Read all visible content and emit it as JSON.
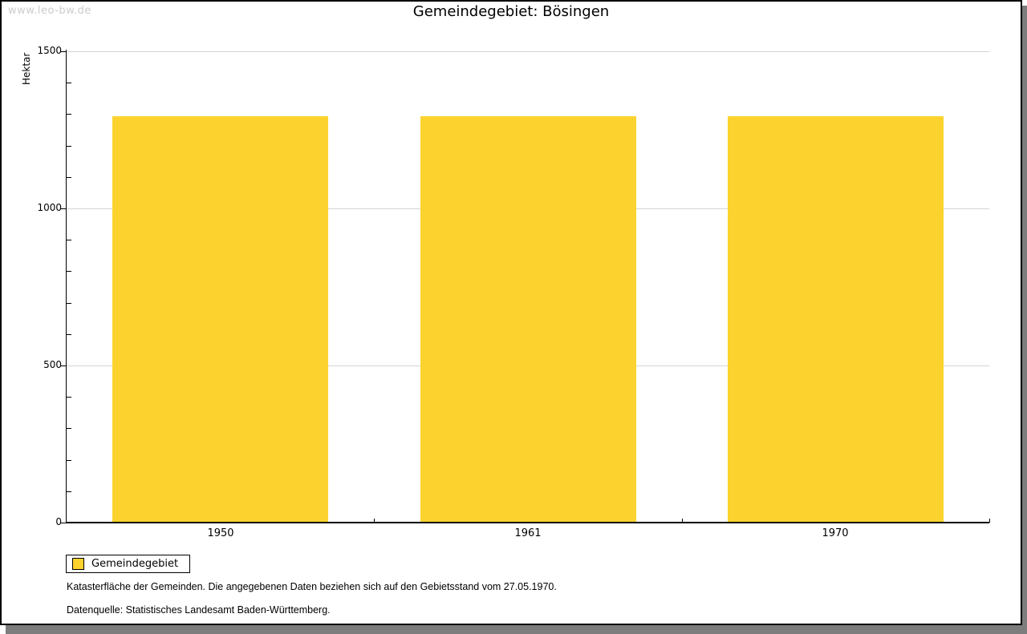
{
  "watermark": "www.leo-bw.de",
  "title": "Gemeindegebiet: Bösingen",
  "chart_data": {
    "type": "bar",
    "categories": [
      "1950",
      "1961",
      "1970"
    ],
    "values": [
      1293,
      1293,
      1293
    ],
    "title": "Gemeindegebiet: Bösingen",
    "xlabel": "",
    "ylabel": "Hektar",
    "ylim": [
      0,
      1500
    ],
    "yticks": [
      0,
      500,
      1000,
      1500
    ],
    "minor_tick_step": 100,
    "grid": true,
    "legend": [
      "Gemeindegebiet"
    ],
    "legend_position": "bottom-left",
    "bar_color": "#fcd32e"
  },
  "footnotes": [
    "Katasterfläche der Gemeinden. Die angegebenen Daten beziehen sich auf den Gebietsstand vom 27.05.1970.",
    "Datenquelle: Statistisches Landesamt Baden-Württemberg."
  ],
  "colors": {
    "bar": "#fcd32e",
    "grid": "#d4d4d4",
    "axis": "#000000",
    "watermark": "#cccccc",
    "shadow": "#7d7d7d"
  }
}
